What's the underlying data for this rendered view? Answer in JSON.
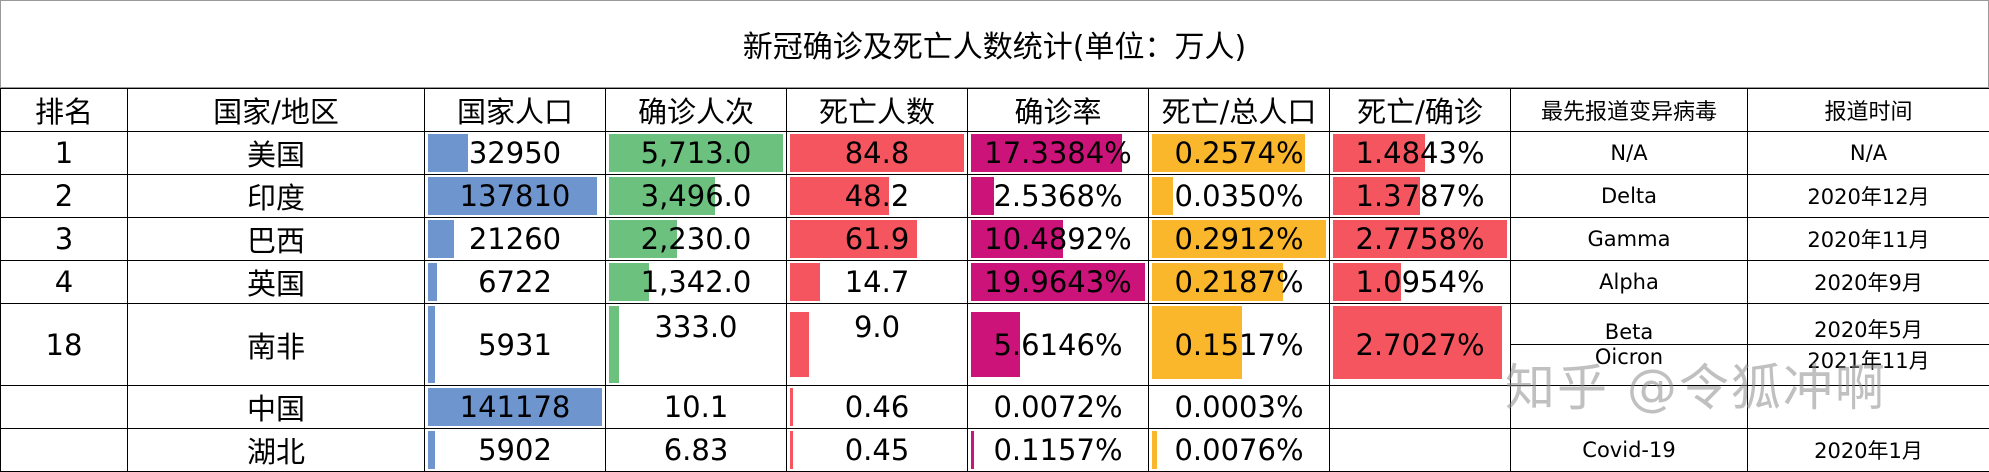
{
  "title": "新冠确诊及死亡人数统计(单位：万人)",
  "headers": [
    "排名",
    "国家/地区",
    "国家人口",
    "确诊人次",
    "死亡人数",
    "确诊率",
    "死亡/总人口",
    "死亡/确诊",
    "最先报道变异病毒",
    "报道时间"
  ],
  "rows": [
    {
      "rank": "1",
      "region": "美国",
      "population": "32950",
      "pop_frac": 0.23,
      "confirmed": "5,713.0",
      "conf_frac": 1.0,
      "deaths": "84.8",
      "death_frac": 1.0,
      "rate": "17.3384%",
      "rate_frac": 0.87,
      "death_pop": "0.2574%",
      "dp_frac": 0.88,
      "death_conf": "1.4843%",
      "dc_frac": 0.53,
      "variant": "N/A",
      "date": "N/A"
    },
    {
      "rank": "2",
      "region": "印度",
      "population": "137810",
      "pop_frac": 0.97,
      "confirmed": "3,496.0",
      "conf_frac": 0.61,
      "deaths": "48.2",
      "death_frac": 0.57,
      "rate": "2.5368%",
      "rate_frac": 0.13,
      "death_pop": "0.0350%",
      "dp_frac": 0.12,
      "death_conf": "1.3787%",
      "dc_frac": 0.5,
      "variant": "Delta",
      "date": "2020年12月"
    },
    {
      "rank": "3",
      "region": "巴西",
      "population": "21260",
      "pop_frac": 0.15,
      "confirmed": "2,230.0",
      "conf_frac": 0.39,
      "deaths": "61.9",
      "death_frac": 0.73,
      "rate": "10.4892%",
      "rate_frac": 0.53,
      "death_pop": "0.2912%",
      "dp_frac": 1.0,
      "death_conf": "2.7758%",
      "dc_frac": 1.0,
      "variant": "Gamma",
      "date": "2020年11月"
    },
    {
      "rank": "4",
      "region": "英国",
      "population": "6722",
      "pop_frac": 0.05,
      "confirmed": "1,342.0",
      "conf_frac": 0.23,
      "deaths": "14.7",
      "death_frac": 0.17,
      "rate": "19.9643%",
      "rate_frac": 1.0,
      "death_pop": "0.2187%",
      "dp_frac": 0.75,
      "death_conf": "1.0954%",
      "dc_frac": 0.39,
      "variant": "Alpha",
      "date": "2020年9月"
    },
    {
      "rank": "18",
      "region": "南非",
      "population": "5931",
      "pop_frac": 0.04,
      "confirmed": "333.0",
      "conf_frac": 0.06,
      "deaths": "9.0",
      "death_frac": 0.11,
      "rate": "5.6146%",
      "rate_frac": 0.28,
      "death_pop": "0.1517%",
      "dp_frac": 0.52,
      "death_conf": "2.7027%",
      "dc_frac": 0.97,
      "variant": "Beta",
      "date": "2020年5月",
      "variant2": "Oicron",
      "date2": "2021年11月"
    },
    {
      "rank": "",
      "region": "中国",
      "population": "141178",
      "pop_frac": 1.0,
      "confirmed": "10.1",
      "conf_frac": 0.0,
      "deaths": "0.46",
      "death_frac": 0.005,
      "rate": "0.0072%",
      "rate_frac": 0.0,
      "death_pop": "0.0003%",
      "dp_frac": 0.0,
      "death_conf": "",
      "dc_frac": 0.0,
      "variant": "",
      "date": ""
    },
    {
      "rank": "",
      "region": "湖北",
      "population": "5902",
      "pop_frac": 0.04,
      "confirmed": "6.83",
      "conf_frac": 0.0,
      "deaths": "0.45",
      "death_frac": 0.005,
      "rate": "0.1157%",
      "rate_frac": 0.006,
      "death_pop": "0.0076%",
      "dp_frac": 0.026,
      "death_conf": "",
      "dc_frac": 0.0,
      "variant": "Covid-19",
      "date": "2020年1月"
    }
  ],
  "watermark": "知乎 @令狐冲啊",
  "colors": {
    "population": "#6f95cf",
    "confirmed": "#6cc17f",
    "deaths": "#f5555f",
    "rate": "#cc137a",
    "death_pop": "#fbb72c",
    "death_conf": "#f5555f"
  }
}
